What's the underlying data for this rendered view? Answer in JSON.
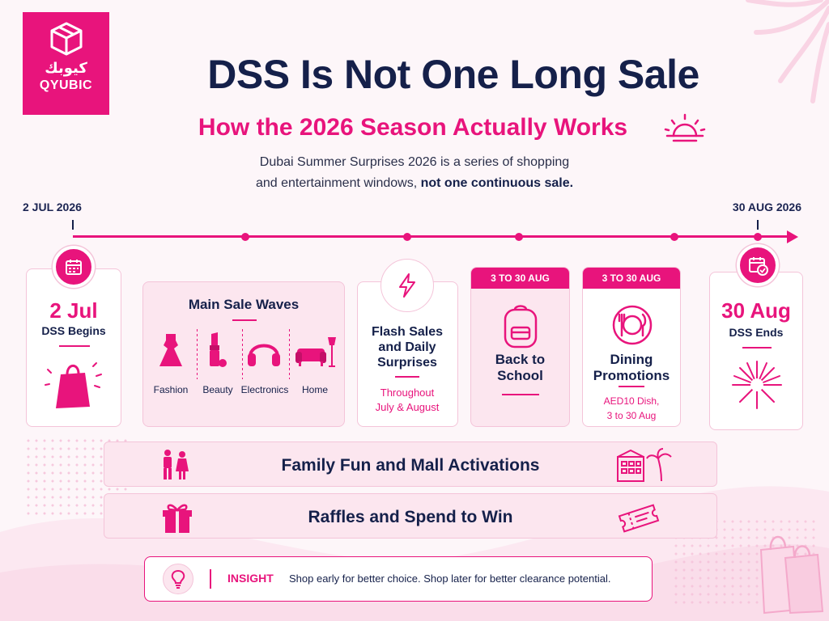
{
  "brand": {
    "arabic": "كيوبك",
    "name": "QYUBIC"
  },
  "title": "DSS Is Not One Long Sale",
  "subtitle": "How the 2026 Season Actually Works",
  "intro": {
    "line1": "Dubai Summer Surprises 2026 is a series of shopping",
    "line2_prefix": "and entertainment windows, ",
    "line2_bold": "not one continuous sale."
  },
  "timeline": {
    "start": "2 JUL 2026",
    "end": "30 AUG 2026"
  },
  "start_card": {
    "date": "2 Jul",
    "label": "DSS Begins"
  },
  "sale_waves": {
    "title": "Main Sale Waves",
    "items": [
      "Fashion",
      "Beauty",
      "Electronics",
      "Home"
    ]
  },
  "flash": {
    "title_l1": "Flash Sales",
    "title_l2": "and Daily",
    "title_l3": "Surprises",
    "sub_l1": "Throughout",
    "sub_l2": "July & August"
  },
  "school": {
    "tag": "3 TO 30 AUG",
    "title_l1": "Back to",
    "title_l2": "School"
  },
  "dining": {
    "tag": "3 TO 30 AUG",
    "title_l1": "Dining",
    "title_l2": "Promotions",
    "sub_l1": "AED10 Dish,",
    "sub_l2": "3 to 30 Aug"
  },
  "end_card": {
    "date": "30 Aug",
    "label": "DSS Ends"
  },
  "bands": {
    "family": "Family Fun and Mall Activations",
    "raffles": "Raffles and Spend to Win"
  },
  "insight": {
    "label": "INSIGHT",
    "text": "Shop early for better choice. Shop later for better clearance potential."
  },
  "colors": {
    "accent": "#e8147c",
    "navy": "#15204a",
    "soft": "#fce6ef",
    "border": "#f4c4d9"
  }
}
